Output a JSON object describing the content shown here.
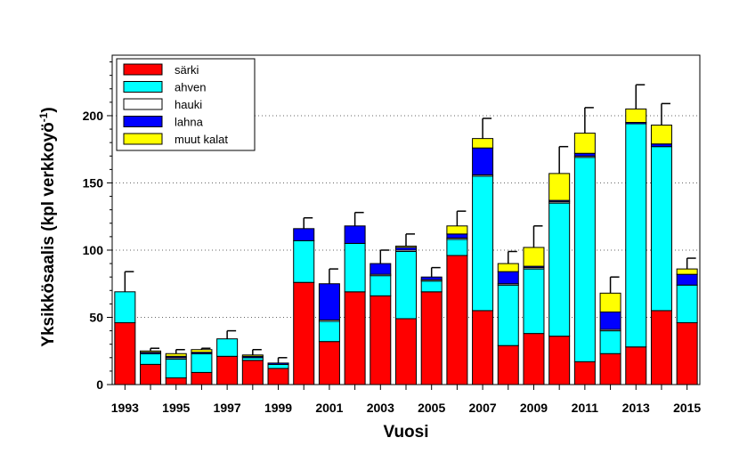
{
  "chart_data": {
    "type": "bar",
    "stacked": true,
    "xlabel": "Vuosi",
    "ylabel": "Yksikkösaalis (kpl verkkoyö",
    "ylabel_superscript": "-1",
    "ylabel_suffix": ")",
    "ylim": [
      0,
      245
    ],
    "yticks": [
      0,
      50,
      100,
      150,
      200
    ],
    "grid": "horizontal-dotted",
    "legend_position": "top-left",
    "categories": [
      "1993",
      "1994",
      "1995",
      "1996",
      "1997",
      "1998",
      "1999",
      "2000",
      "2001",
      "2002",
      "2003",
      "2004",
      "2005",
      "2006",
      "2007",
      "2008",
      "2009",
      "2010",
      "2011",
      "2012",
      "2013",
      "2014",
      "2015"
    ],
    "xtick_labels": [
      "1993",
      "",
      "1995",
      "",
      "1997",
      "",
      "1999",
      "",
      "2001",
      "",
      "2003",
      "",
      "2005",
      "",
      "2007",
      "",
      "2009",
      "",
      "2011",
      "",
      "2013",
      "",
      "2015"
    ],
    "series": [
      {
        "name": "särki",
        "color": "#ff0000",
        "values": [
          46,
          15,
          5,
          9,
          21,
          18,
          12,
          76,
          32,
          69,
          66,
          49,
          69,
          96,
          55,
          29,
          38,
          36,
          17,
          23,
          28,
          55,
          46
        ]
      },
      {
        "name": "ahven",
        "color": "#00ffff",
        "values": [
          23,
          8,
          14,
          14,
          13,
          2,
          3,
          31,
          15,
          36,
          15,
          50,
          8,
          12,
          100,
          45,
          48,
          99,
          152,
          17,
          166,
          122,
          28
        ]
      },
      {
        "name": "hauki",
        "color": "#ffffff",
        "values": [
          0,
          0,
          1,
          0,
          0,
          0,
          0,
          0,
          1,
          0,
          1,
          1,
          1,
          1,
          1,
          1,
          1,
          1,
          1,
          1,
          0,
          0,
          0
        ]
      },
      {
        "name": "lahna",
        "color": "#0000ff",
        "values": [
          0,
          1,
          1,
          1,
          0,
          1,
          1,
          9,
          27,
          13,
          8,
          2,
          2,
          3,
          20,
          9,
          1,
          1,
          2,
          13,
          1,
          2,
          8
        ]
      },
      {
        "name": "muut kalat",
        "color": "#ffff00",
        "values": [
          0,
          1,
          2,
          2,
          0,
          1,
          0,
          0,
          0,
          0,
          0,
          1,
          0,
          6,
          7,
          6,
          14,
          20,
          15,
          14,
          10,
          14,
          4
        ]
      }
    ],
    "error_bar_tops": [
      84,
      27,
      26,
      27,
      40,
      26,
      20,
      124,
      86,
      128,
      100,
      112,
      87,
      129,
      198,
      99,
      118,
      177,
      206,
      80,
      223,
      209,
      94
    ]
  }
}
